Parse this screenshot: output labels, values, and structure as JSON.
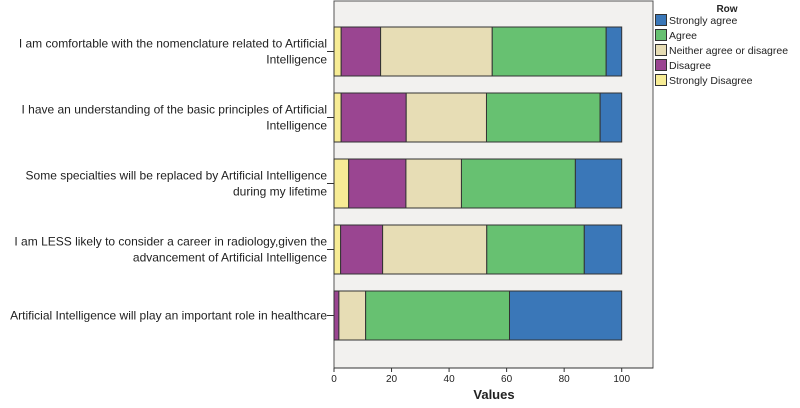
{
  "chart_data": {
    "type": "bar",
    "orientation": "horizontal",
    "stacked": true,
    "title": "",
    "xlabel": "Values",
    "ylabel": "",
    "xlim": [
      0,
      100
    ],
    "xticks": [
      "0",
      "20",
      "40",
      "60",
      "80",
      "100"
    ],
    "categories": [
      [
        "I am comfortable with the nomenclature related to Artificial",
        "Intelligence"
      ],
      [
        "I have an understanding of the basic principles of Artificial",
        "Intelligence"
      ],
      [
        "Some specialties will be replaced by Artificial Intelligence",
        "during my lifetime"
      ],
      [
        "I am LESS likely to consider a career in radiology,given the",
        "advancement of Artificial Intelligence"
      ],
      [
        "Artificial Intelligence will play an important role in healthcare"
      ]
    ],
    "legend": {
      "title": "Row",
      "placement": "top-right"
    },
    "series": [
      {
        "name": "Strongly Disagree",
        "color": "#f7ec95",
        "values": [
          2.5,
          2.5,
          5.1,
          2.3,
          0
        ]
      },
      {
        "name": "Disagree",
        "color": "#9a4591",
        "values": [
          13.7,
          22.6,
          19.9,
          14.6,
          1.7
        ]
      },
      {
        "name": "Neither agree or disagree",
        "color": "#e7ddb5",
        "values": [
          38.8,
          27.9,
          19.3,
          36.2,
          9.3
        ]
      },
      {
        "name": "Agree",
        "color": "#67c171",
        "values": [
          39.6,
          39.5,
          39.6,
          33.9,
          50.0
        ]
      },
      {
        "name": "Strongly agree",
        "color": "#3a77b8",
        "values": [
          5.4,
          7.5,
          16.1,
          13.0,
          39.0
        ]
      }
    ],
    "legend_order": [
      "Strongly agree",
      "Agree",
      "Neither agree or disagree",
      "Disagree",
      "Strongly Disagree"
    ]
  }
}
